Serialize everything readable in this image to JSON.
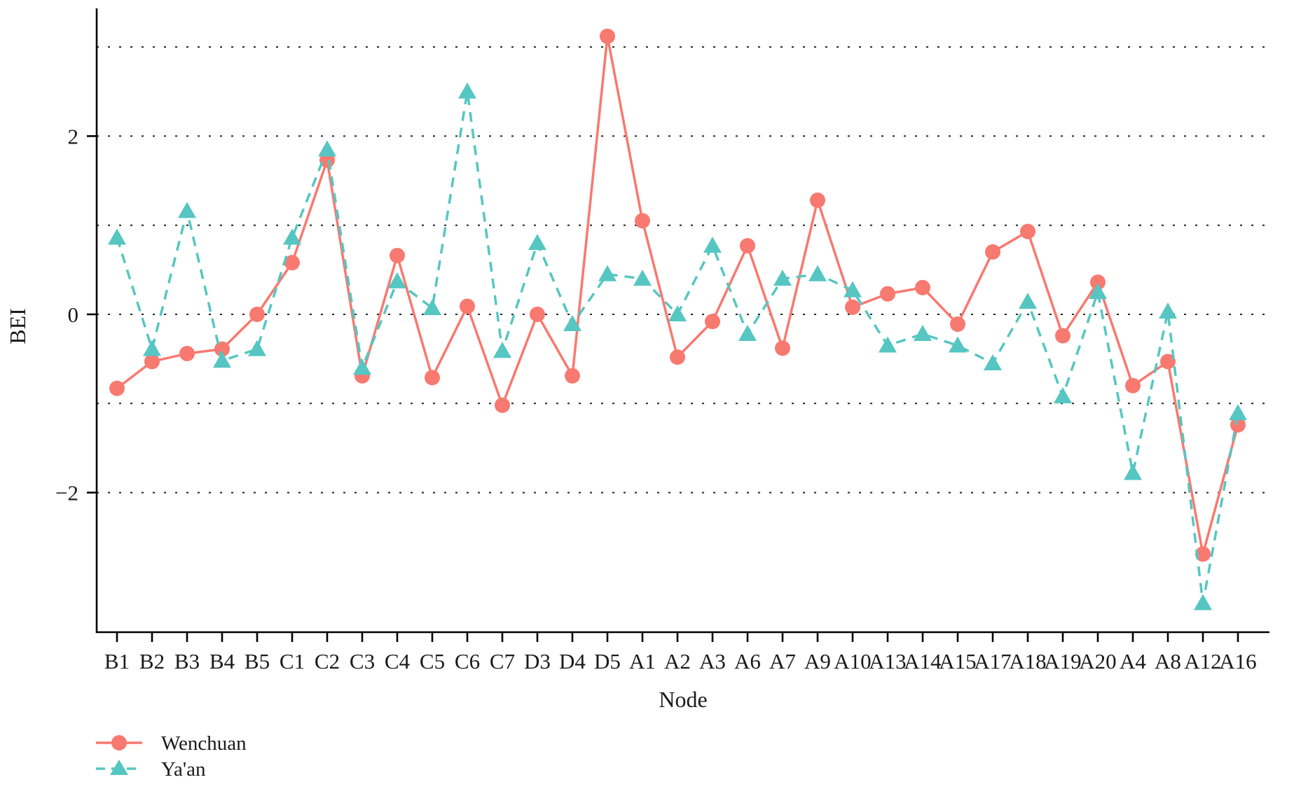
{
  "figure": {
    "background": "#ffffff",
    "axis_color": "#000000",
    "grid_color": "#222222"
  },
  "axes": {
    "y_axis_title": "BEI",
    "x_axis_title": "Node",
    "y_tick_labels": [
      {
        "label": "2",
        "value": 2
      },
      {
        "label": "0",
        "value": 0
      },
      {
        "label": "−2",
        "value": -2
      }
    ],
    "gridline_values": [
      3,
      2,
      1,
      0,
      -1,
      -2
    ]
  },
  "legend": {
    "items": [
      {
        "label": "Wenchuan"
      },
      {
        "label": "Ya'an"
      }
    ]
  },
  "chart_data": {
    "type": "line",
    "title": "",
    "xlabel": "Node",
    "ylabel": "BEI",
    "ylim": [
      -3.6,
      3.45
    ],
    "grid": "horizontal dotted gridlines at integer values -2..3",
    "legend_position": "bottom-left",
    "categories": [
      "B1",
      "B2",
      "B3",
      "B4",
      "B5",
      "C1",
      "C2",
      "C3",
      "C4",
      "C5",
      "C6",
      "C7",
      "D3",
      "D4",
      "D5",
      "A1",
      "A2",
      "A3",
      "A6",
      "A7",
      "A9",
      "A10",
      "A13",
      "A14",
      "A15",
      "A17",
      "A18",
      "A19",
      "A20",
      "A4",
      "A8",
      "A12",
      "A16"
    ],
    "series": [
      {
        "name": "Wenchuan",
        "color": "#F8796F",
        "marker": "circle",
        "line_style": "solid",
        "values": [
          -0.83,
          -0.53,
          -0.44,
          -0.39,
          0.0,
          0.58,
          1.73,
          -0.69,
          0.66,
          -0.71,
          0.09,
          -1.02,
          0.0,
          -0.69,
          3.12,
          1.05,
          -0.48,
          -0.08,
          0.77,
          -0.38,
          1.28,
          0.08,
          0.23,
          0.3,
          -0.11,
          0.7,
          0.93,
          -0.24,
          0.36,
          -0.8,
          -0.53,
          -2.69,
          -1.24
        ]
      },
      {
        "name": "Ya'an",
        "color": "#56C6C2",
        "marker": "triangle",
        "line_style": "dashed",
        "values": [
          0.86,
          -0.39,
          1.16,
          -0.52,
          -0.39,
          0.86,
          1.85,
          -0.6,
          0.37,
          0.07,
          2.5,
          -0.41,
          0.8,
          -0.11,
          0.45,
          0.4,
          0.0,
          0.77,
          -0.22,
          0.4,
          0.45,
          0.27,
          -0.35,
          -0.22,
          -0.35,
          -0.55,
          0.14,
          -0.92,
          0.25,
          -1.78,
          0.03,
          -3.24,
          -1.11
        ]
      }
    ]
  }
}
